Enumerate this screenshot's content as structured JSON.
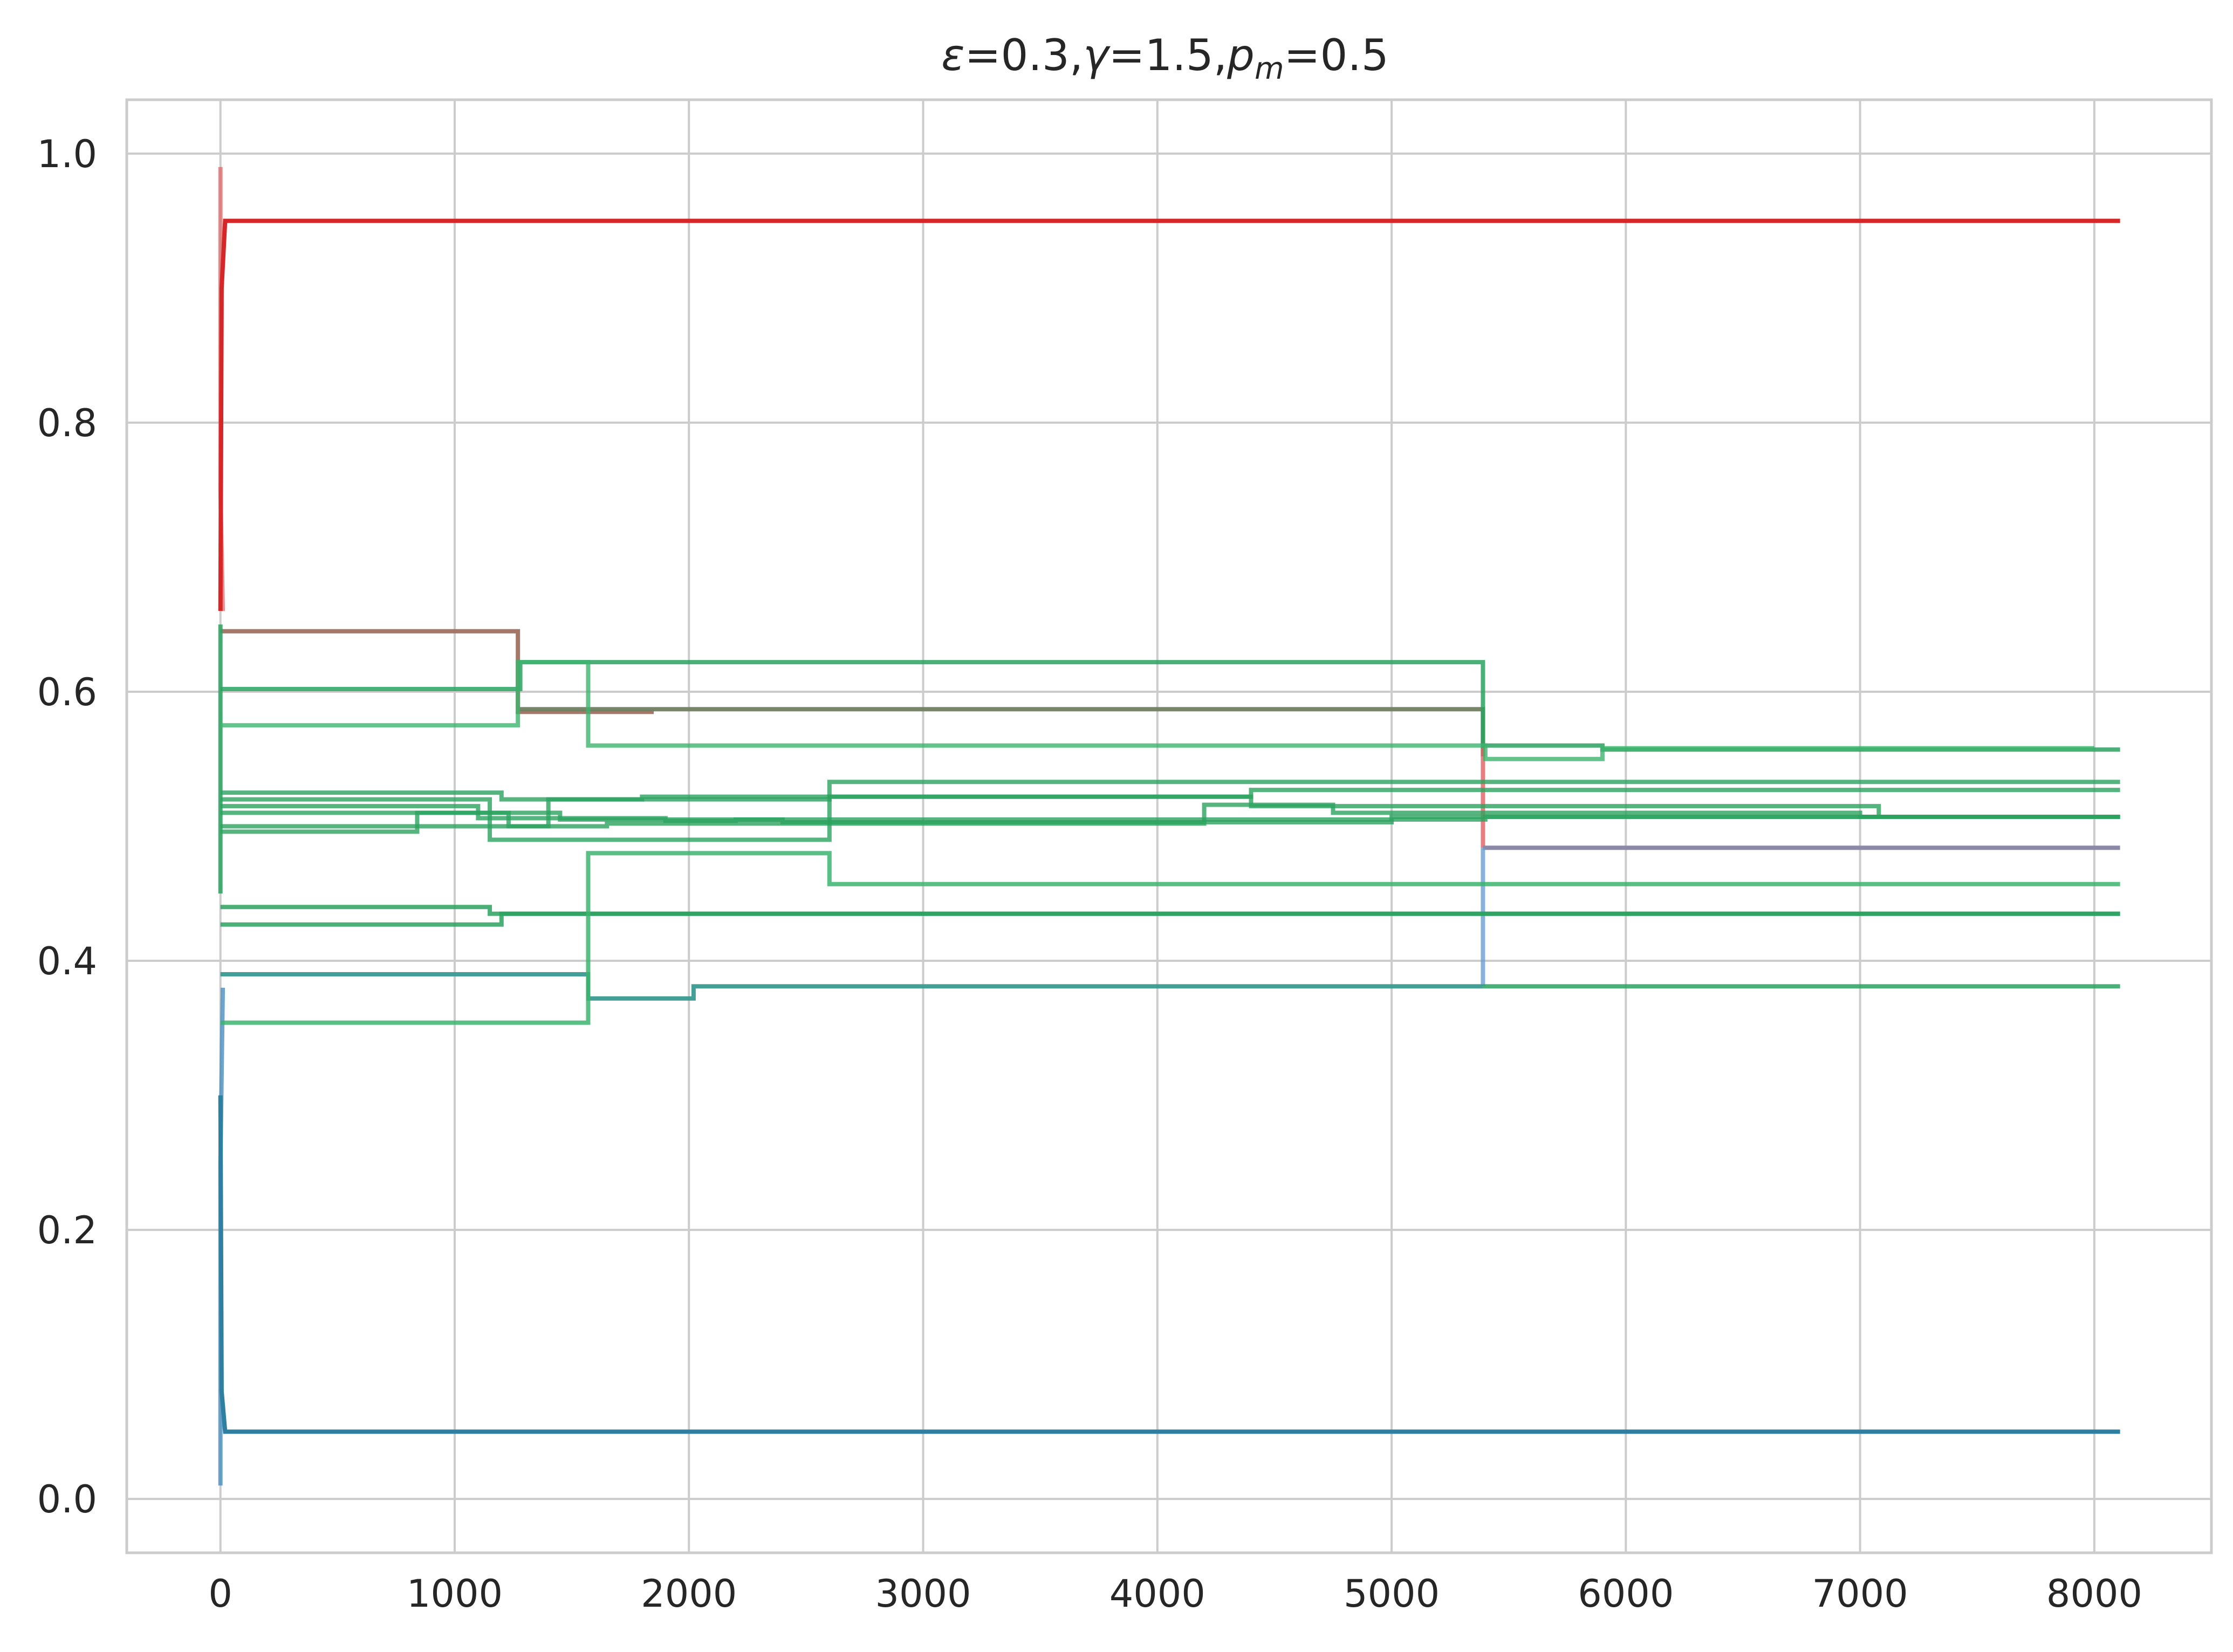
{
  "chart_data": {
    "type": "line",
    "title": "ε=0.3,γ=1.5,p_m=0.5",
    "title_parts": {
      "eps": "ε",
      "eps_val": "=0.3,",
      "gamma": "γ",
      "gamma_val": "=1.5,",
      "p": "p",
      "p_sub": "m",
      "p_val": "=0.5"
    },
    "xlabel": "",
    "ylabel": "",
    "xlim": [
      -400,
      8500
    ],
    "ylim": [
      -0.04,
      1.04
    ],
    "xticks": [
      0,
      1000,
      2000,
      3000,
      4000,
      5000,
      6000,
      7000,
      8000
    ],
    "xtick_labels": [
      "0",
      "1000",
      "2000",
      "3000",
      "4000",
      "5000",
      "6000",
      "7000",
      "8000"
    ],
    "yticks": [
      0.0,
      0.2,
      0.4,
      0.6,
      0.8,
      1.0
    ],
    "ytick_labels": [
      "0.0",
      "0.2",
      "0.4",
      "0.6",
      "0.8",
      "1.0"
    ],
    "grid": true,
    "legend": "none",
    "series": [
      {
        "color": "#e06060",
        "opacity": 0.7,
        "x": [
          0,
          0,
          10
        ],
        "y": [
          0.99,
          0.75,
          0.66
        ]
      },
      {
        "color": "#d62728",
        "opacity": 1.0,
        "x": [
          0,
          5,
          20,
          50,
          8110
        ],
        "y": [
          0.66,
          0.9,
          0.95,
          0.95,
          0.95
        ]
      },
      {
        "color": "#a07060",
        "opacity": 0.95,
        "x": [
          0,
          1270,
          1270,
          1850
        ],
        "y": [
          0.645,
          0.645,
          0.585,
          0.585
        ]
      },
      {
        "color": "#708060",
        "opacity": 0.95,
        "x": [
          1270,
          5390,
          5390
        ],
        "y": [
          0.587,
          0.587,
          0.552
        ]
      },
      {
        "color": "#e06060",
        "opacity": 0.8,
        "x": [
          5390,
          5390
        ],
        "y": [
          0.56,
          0.484
        ]
      },
      {
        "color": "#8b88a8",
        "opacity": 1.0,
        "x": [
          5390,
          8110
        ],
        "y": [
          0.484,
          0.484
        ]
      },
      {
        "color": "#6a9fd0",
        "opacity": 0.8,
        "x": [
          5390,
          5390
        ],
        "y": [
          0.484,
          0.381
        ]
      },
      {
        "color": "#4a8fc0",
        "opacity": 0.8,
        "x": [
          0,
          0,
          10
        ],
        "y": [
          0.01,
          0.25,
          0.38
        ]
      },
      {
        "color": "#2e7fa0",
        "opacity": 1.0,
        "x": [
          0,
          5,
          20,
          50,
          8110
        ],
        "y": [
          0.3,
          0.08,
          0.05,
          0.05,
          0.05
        ]
      },
      {
        "color": "#3a9a90",
        "opacity": 0.95,
        "x": [
          0,
          1570,
          1570,
          2020,
          2020,
          5390
        ],
        "y": [
          0.39,
          0.39,
          0.372,
          0.372,
          0.381,
          0.381
        ]
      },
      {
        "color": "#2ca25f",
        "opacity": 0.85,
        "x": [
          0,
          0
        ],
        "y": [
          0.45,
          0.65
        ]
      },
      {
        "color": "#2ca25f",
        "opacity": 0.85,
        "x": [
          0,
          1280,
          1280,
          5390,
          5390,
          5900,
          5900,
          8110
        ],
        "y": [
          0.602,
          0.602,
          0.622,
          0.622,
          0.56,
          0.56,
          0.557,
          0.557
        ]
      },
      {
        "color": "#3cb46e",
        "opacity": 0.8,
        "x": [
          0,
          1270,
          1270,
          1570,
          1570,
          5400,
          5400,
          5900,
          5900,
          8000
        ],
        "y": [
          0.575,
          0.575,
          0.622,
          0.622,
          0.56,
          0.56,
          0.55,
          0.55,
          0.558,
          0.558
        ]
      },
      {
        "color": "#2ca25f",
        "opacity": 0.8,
        "x": [
          0,
          1200,
          1200,
          1800,
          1800,
          4400,
          4400,
          8110
        ],
        "y": [
          0.525,
          0.525,
          0.52,
          0.52,
          0.522,
          0.522,
          0.527,
          0.527
        ]
      },
      {
        "color": "#2ca25f",
        "opacity": 0.8,
        "x": [
          0,
          1150,
          1150,
          2600,
          2600,
          7080,
          7080,
          8110
        ],
        "y": [
          0.52,
          0.52,
          0.49,
          0.49,
          0.533,
          0.533,
          0.533,
          0.533
        ]
      },
      {
        "color": "#2ca25f",
        "opacity": 0.8,
        "x": [
          0,
          1100,
          1100,
          1900,
          1900,
          2200,
          2200,
          5400,
          5400,
          8110
        ],
        "y": [
          0.515,
          0.515,
          0.506,
          0.506,
          0.504,
          0.504,
          0.505,
          0.505,
          0.507,
          0.507
        ]
      },
      {
        "color": "#2ca25f",
        "opacity": 0.8,
        "x": [
          0,
          840,
          840,
          1450,
          1450,
          2400,
          2400,
          5000,
          5000,
          8110
        ],
        "y": [
          0.496,
          0.496,
          0.51,
          0.51,
          0.505,
          0.505,
          0.503,
          0.503,
          0.507,
          0.507
        ]
      },
      {
        "color": "#2ca25f",
        "opacity": 0.8,
        "x": [
          0,
          1230,
          1230,
          1650,
          1650,
          4200,
          4200,
          4750,
          4750,
          7000,
          7000,
          8110
        ],
        "y": [
          0.51,
          0.51,
          0.5,
          0.5,
          0.502,
          0.502,
          0.516,
          0.516,
          0.51,
          0.51,
          0.507,
          0.507
        ]
      },
      {
        "color": "#2ca25f",
        "opacity": 0.8,
        "x": [
          0,
          1400,
          1400,
          2600,
          2600,
          4400,
          4400,
          7080,
          7080,
          8110
        ],
        "y": [
          0.5,
          0.5,
          0.52,
          0.52,
          0.522,
          0.522,
          0.515,
          0.515,
          0.507,
          0.507
        ]
      },
      {
        "color": "#2ca25f",
        "opacity": 0.85,
        "x": [
          0,
          1150,
          1150,
          8110
        ],
        "y": [
          0.44,
          0.44,
          0.435,
          0.435
        ]
      },
      {
        "color": "#2ca25f",
        "opacity": 0.85,
        "x": [
          0,
          1200,
          1200,
          8110
        ],
        "y": [
          0.427,
          0.427,
          0.435,
          0.435
        ]
      },
      {
        "color": "#3cb46e",
        "opacity": 0.85,
        "x": [
          0,
          1570,
          1570,
          2600,
          2600,
          8110
        ],
        "y": [
          0.354,
          0.354,
          0.48,
          0.48,
          0.457,
          0.457
        ]
      },
      {
        "color": "#2ca25f",
        "opacity": 0.85,
        "x": [
          5390,
          8110
        ],
        "y": [
          0.381,
          0.381
        ]
      }
    ]
  }
}
